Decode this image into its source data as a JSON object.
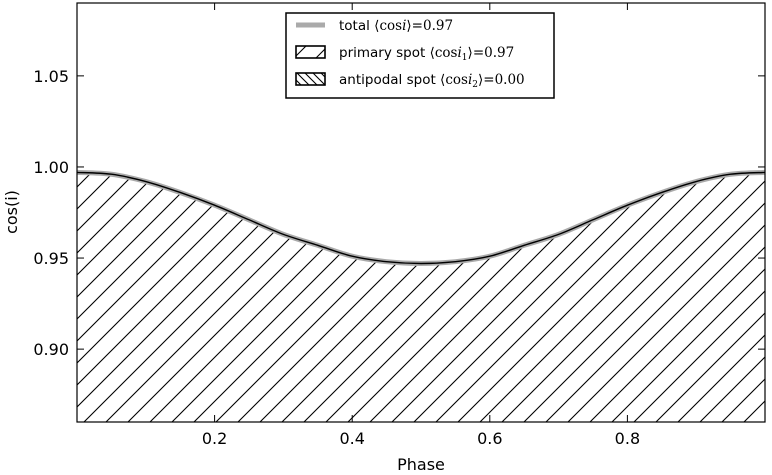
{
  "chart_data": {
    "type": "area",
    "xlabel": "Phase",
    "ylabel": "cos(i)",
    "xlim": [
      0.0,
      1.0
    ],
    "ylim": [
      0.86,
      1.09
    ],
    "xticks": [
      0.2,
      0.4,
      0.6,
      0.8
    ],
    "xtick_labels": [
      "0.2",
      "0.4",
      "0.6",
      "0.8"
    ],
    "yticks": [
      0.9,
      0.95,
      1.0,
      1.05
    ],
    "ytick_labels": [
      "0.90",
      "0.95",
      "1.00",
      "1.05"
    ],
    "grid": false,
    "legend_position": "top-center",
    "x": [
      0.0,
      0.05,
      0.1,
      0.15,
      0.2,
      0.25,
      0.3,
      0.35,
      0.4,
      0.45,
      0.5,
      0.55,
      0.6,
      0.65,
      0.7,
      0.75,
      0.8,
      0.85,
      0.9,
      0.95,
      1.0
    ],
    "series": [
      {
        "name": "total",
        "label_text": "total",
        "math_parts": [
          "⟨cos",
          "i",
          "⟩",
          "=0.97"
        ],
        "style": "line",
        "color": "#aaaaaa",
        "values": [
          0.997,
          0.996,
          0.992,
          0.986,
          0.979,
          0.971,
          0.963,
          0.957,
          0.951,
          0.948,
          0.947,
          0.948,
          0.951,
          0.957,
          0.963,
          0.971,
          0.979,
          0.986,
          0.992,
          0.996,
          0.997
        ]
      },
      {
        "name": "primary spot",
        "label_text": "primary spot",
        "math_parts": [
          "⟨cos",
          "i",
          "1",
          "⟩",
          "=0.97"
        ],
        "style": "hatch /",
        "color": "#000000",
        "values": [
          0.997,
          0.996,
          0.992,
          0.986,
          0.979,
          0.971,
          0.963,
          0.957,
          0.951,
          0.948,
          0.947,
          0.948,
          0.951,
          0.957,
          0.963,
          0.971,
          0.979,
          0.986,
          0.992,
          0.996,
          0.997
        ]
      },
      {
        "name": "antipodal spot",
        "label_text": "antipodal spot",
        "math_parts": [
          "⟨cos",
          "i",
          "2",
          "⟩",
          "=0.00"
        ],
        "style": "hatch \\",
        "color": "#000000",
        "values": [
          0,
          0,
          0,
          0,
          0,
          0,
          0,
          0,
          0,
          0,
          0,
          0,
          0,
          0,
          0,
          0,
          0,
          0,
          0,
          0,
          0
        ]
      }
    ]
  }
}
